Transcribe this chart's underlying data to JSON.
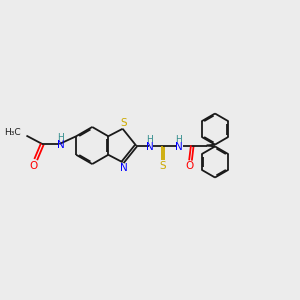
{
  "background_color": "#ececec",
  "bond_color": "#1a1a1a",
  "atom_colors": {
    "N": "#0000ff",
    "O": "#ff0000",
    "S": "#ccaa00",
    "H": "#2e8b8b",
    "C": "#1a1a1a"
  },
  "figsize": [
    3.0,
    3.0
  ],
  "dpi": 100
}
